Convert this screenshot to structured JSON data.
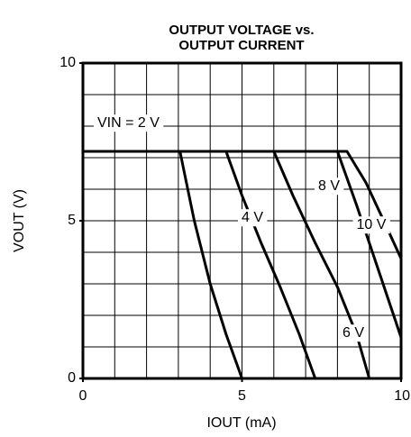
{
  "chart_data": {
    "type": "line",
    "title": "OUTPUT VOLTAGE vs.",
    "subtitle": "OUTPUT CURRENT",
    "x_label": "IOUT (mA)",
    "y_label": "VOUT (V)",
    "xlim": [
      0,
      10
    ],
    "ylim": [
      0,
      10
    ],
    "xticks": [
      0,
      5,
      10
    ],
    "yticks": [
      0,
      5,
      10
    ],
    "xgrid": [
      1,
      2,
      3,
      4,
      5,
      6,
      7,
      8,
      9
    ],
    "ygrid": [
      1,
      2,
      3,
      4,
      5,
      6,
      7,
      8,
      9
    ],
    "grid": true,
    "series": [
      {
        "name": "VIN = 2 V",
        "color": "#000000",
        "x": [
          0,
          3.05,
          3.5,
          4.0,
          4.5,
          5.0
        ],
        "values": [
          7.2,
          7.2,
          5.0,
          3.0,
          1.4,
          0
        ]
      },
      {
        "name": "4 V",
        "color": "#000000",
        "x": [
          0,
          4.5,
          5.0,
          5.6,
          6.2,
          6.8,
          7.3
        ],
        "values": [
          7.2,
          7.2,
          5.8,
          4.3,
          2.9,
          1.4,
          0
        ]
      },
      {
        "name": "6 V",
        "color": "#000000",
        "x": [
          0,
          6.0,
          6.6,
          7.3,
          8.0,
          8.6,
          9.0
        ],
        "values": [
          7.2,
          7.2,
          5.8,
          4.3,
          2.9,
          1.4,
          0
        ]
      },
      {
        "name": "8 V",
        "color": "#000000",
        "x": [
          0,
          8.0,
          8.6,
          9.3,
          10.0
        ],
        "values": [
          7.2,
          7.2,
          5.5,
          3.4,
          1.3
        ]
      },
      {
        "name": "10 V",
        "color": "#000000",
        "x": [
          0,
          8.3,
          8.9,
          9.5,
          10.0
        ],
        "values": [
          7.2,
          7.2,
          6.2,
          4.9,
          3.8
        ]
      }
    ]
  }
}
